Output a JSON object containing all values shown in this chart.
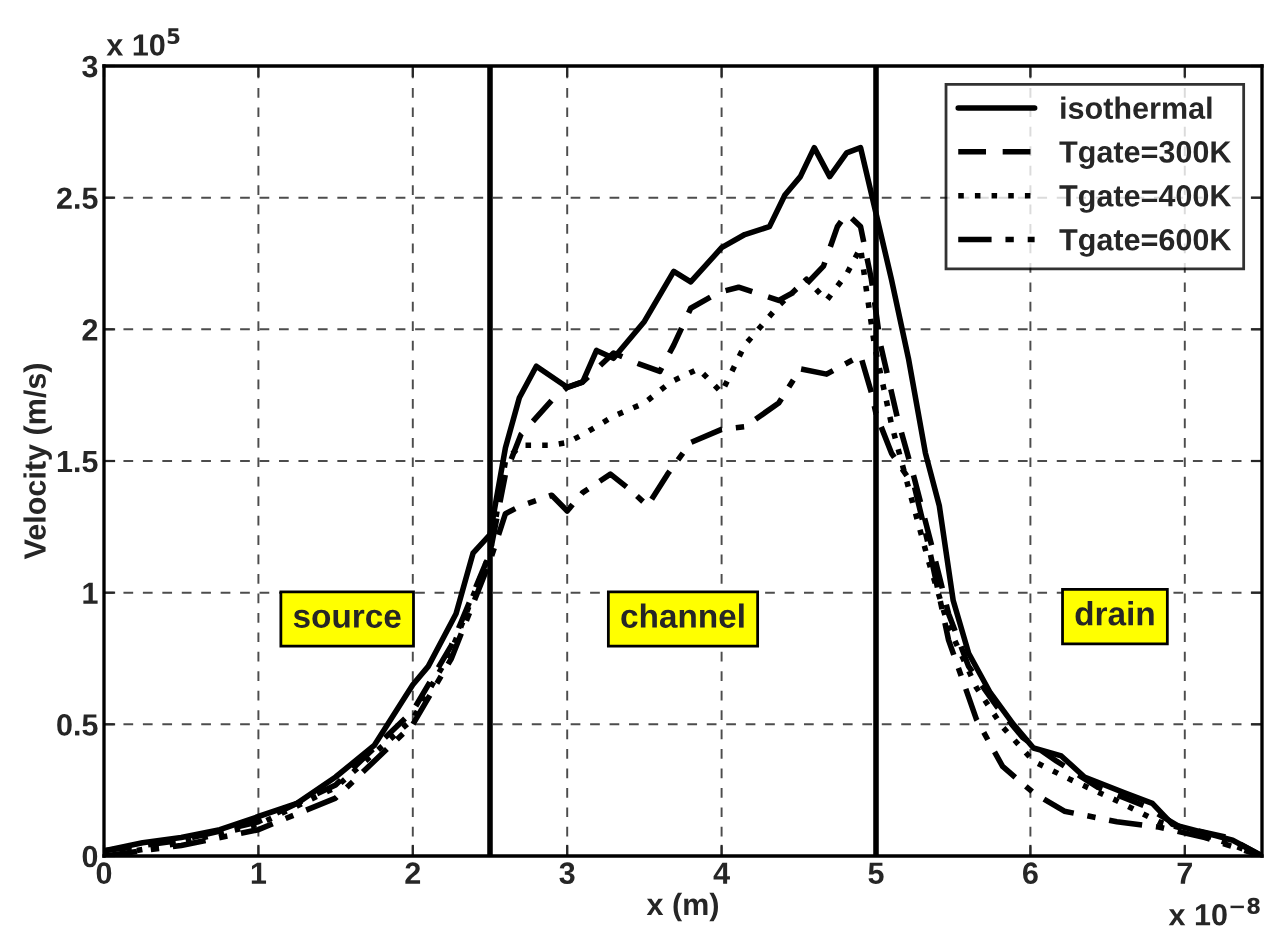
{
  "chart_data": {
    "type": "line",
    "xlabel": "x (m)",
    "ylabel": "Velocity (m/s)",
    "xlim": [
      0,
      7.5
    ],
    "ylim": [
      0,
      3
    ],
    "xticks": [
      0,
      1,
      2,
      3,
      4,
      5,
      6,
      7
    ],
    "yticks": [
      0,
      0.5,
      1,
      1.5,
      2,
      2.5,
      3
    ],
    "grid": true,
    "legend": "top right",
    "series": [
      {
        "name": "isothermal",
        "color": "#000000",
        "line_style": "solid",
        "x": [
          0,
          0.25,
          0.5,
          0.75,
          1.0,
          1.25,
          1.5,
          1.75,
          2.0,
          2.1,
          2.28,
          2.39,
          2.5,
          2.6,
          2.69,
          2.8,
          3.0,
          3.1,
          3.19,
          3.3,
          3.5,
          3.69,
          3.8,
          4.0,
          4.15,
          4.31,
          4.41,
          4.51,
          4.6,
          4.7,
          4.81,
          4.9,
          5.0,
          5.1,
          5.21,
          5.32,
          5.41,
          5.5,
          5.6,
          5.74,
          5.89,
          6.02,
          6.2,
          6.35,
          6.61,
          6.79,
          6.92,
          7.18,
          7.31,
          7.5
        ],
        "values": [
          0.02,
          0.05,
          0.07,
          0.1,
          0.15,
          0.2,
          0.3,
          0.42,
          0.65,
          0.72,
          0.92,
          1.15,
          1.22,
          1.55,
          1.74,
          1.86,
          1.78,
          1.8,
          1.92,
          1.89,
          2.03,
          2.22,
          2.18,
          2.31,
          2.36,
          2.39,
          2.51,
          2.58,
          2.69,
          2.58,
          2.67,
          2.69,
          2.44,
          2.19,
          1.89,
          1.53,
          1.33,
          0.97,
          0.77,
          0.62,
          0.5,
          0.41,
          0.38,
          0.3,
          0.24,
          0.2,
          0.12,
          0.08,
          0.06,
          0.0
        ]
      },
      {
        "name": "Tgate=300K",
        "color": "#000000",
        "line_style": "dashed",
        "x": [
          0,
          0.5,
          1.0,
          1.5,
          2.0,
          2.25,
          2.5,
          2.6,
          2.7,
          2.9,
          3.0,
          3.1,
          3.3,
          3.46,
          3.6,
          3.69,
          3.8,
          3.98,
          4.11,
          4.37,
          4.53,
          4.66,
          4.75,
          4.81,
          4.9,
          4.97,
          5.03,
          5.14,
          5.25,
          5.36,
          5.47,
          5.6,
          5.78,
          5.95,
          6.17,
          6.44,
          6.74,
          6.97,
          7.28,
          7.5
        ],
        "values": [
          0.02,
          0.06,
          0.13,
          0.27,
          0.55,
          0.8,
          1.15,
          1.45,
          1.6,
          1.73,
          1.78,
          1.8,
          1.91,
          1.87,
          1.84,
          1.94,
          2.08,
          2.14,
          2.16,
          2.11,
          2.16,
          2.24,
          2.39,
          2.44,
          2.39,
          2.19,
          1.94,
          1.66,
          1.43,
          1.18,
          0.92,
          0.72,
          0.57,
          0.45,
          0.36,
          0.26,
          0.19,
          0.11,
          0.07,
          0.0
        ]
      },
      {
        "name": "Tgate=400K",
        "color": "#000000",
        "line_style": "dotted",
        "x": [
          0,
          0.5,
          1.0,
          1.5,
          2.0,
          2.25,
          2.5,
          2.6,
          2.7,
          2.9,
          3.0,
          3.1,
          3.3,
          3.5,
          3.67,
          3.85,
          4.0,
          4.15,
          4.37,
          4.55,
          4.68,
          4.81,
          4.9,
          4.94,
          4.99,
          5.1,
          5.21,
          5.34,
          5.47,
          5.65,
          5.82,
          6.02,
          6.26,
          6.56,
          6.83,
          7.13,
          7.5
        ],
        "values": [
          0.0,
          0.05,
          0.12,
          0.26,
          0.52,
          0.78,
          1.15,
          1.5,
          1.56,
          1.56,
          1.57,
          1.6,
          1.67,
          1.72,
          1.8,
          1.85,
          1.76,
          1.94,
          2.09,
          2.19,
          2.11,
          2.21,
          2.31,
          2.14,
          1.94,
          1.64,
          1.4,
          1.12,
          0.87,
          0.64,
          0.49,
          0.36,
          0.29,
          0.21,
          0.13,
          0.08,
          0.0
        ]
      },
      {
        "name": "Tgate=600K",
        "color": "#000000",
        "line_style": "dashdot",
        "x": [
          0,
          0.5,
          1.0,
          1.5,
          2.0,
          2.25,
          2.5,
          2.6,
          2.7,
          2.9,
          3.0,
          3.1,
          3.28,
          3.41,
          3.52,
          3.65,
          3.8,
          4.0,
          4.15,
          4.37,
          4.51,
          4.68,
          4.9,
          4.97,
          5.0,
          5.1,
          5.25,
          5.34,
          5.47,
          5.65,
          5.82,
          6.02,
          6.22,
          6.56,
          6.83,
          7.13,
          7.5
        ],
        "values": [
          0.0,
          0.04,
          0.1,
          0.22,
          0.5,
          0.75,
          1.12,
          1.3,
          1.33,
          1.37,
          1.31,
          1.38,
          1.45,
          1.39,
          1.33,
          1.45,
          1.57,
          1.62,
          1.63,
          1.72,
          1.85,
          1.83,
          1.9,
          1.76,
          1.68,
          1.53,
          1.4,
          1.18,
          0.82,
          0.52,
          0.34,
          0.24,
          0.17,
          0.13,
          0.11,
          0.07,
          0.0
        ]
      }
    ],
    "ref_lines": [
      {
        "axis": "x",
        "value": 2.5,
        "color": "#000000",
        "line_style": "solid"
      },
      {
        "axis": "x",
        "value": 5,
        "color": "#000000",
        "line_style": "solid"
      }
    ],
    "annotations": [
      "source",
      "channel",
      "drain",
      "x 10$^{5}$",
      "x 10$^{−8}$"
    ]
  }
}
